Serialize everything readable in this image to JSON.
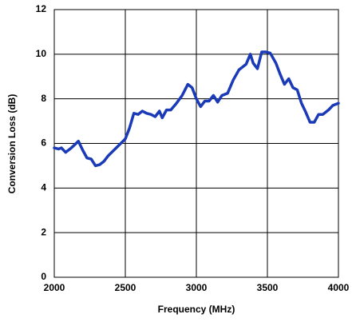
{
  "chart_data": {
    "type": "line",
    "x_label": "Frequency (MHz)",
    "y_label": "Conversion Loss (dB)",
    "x": [
      2000,
      2030,
      2050,
      2080,
      2120,
      2170,
      2200,
      2230,
      2260,
      2290,
      2320,
      2350,
      2380,
      2420,
      2460,
      2500,
      2530,
      2560,
      2590,
      2620,
      2650,
      2680,
      2710,
      2740,
      2760,
      2790,
      2820,
      2860,
      2900,
      2940,
      2970,
      3000,
      3030,
      3060,
      3090,
      3120,
      3150,
      3180,
      3220,
      3260,
      3300,
      3350,
      3380,
      3400,
      3430,
      3460,
      3490,
      3520,
      3560,
      3590,
      3620,
      3650,
      3680,
      3710,
      3740,
      3770,
      3800,
      3830,
      3860,
      3890,
      3930,
      3960,
      4000
    ],
    "series": [
      {
        "color": "#1a3ab8",
        "values": [
          5.8,
          5.75,
          5.8,
          5.6,
          5.8,
          6.1,
          5.7,
          5.35,
          5.3,
          5.0,
          5.05,
          5.2,
          5.45,
          5.7,
          5.95,
          6.2,
          6.7,
          7.35,
          7.3,
          7.45,
          7.35,
          7.3,
          7.2,
          7.45,
          7.15,
          7.5,
          7.5,
          7.8,
          8.15,
          8.65,
          8.5,
          8.0,
          7.65,
          7.9,
          7.9,
          8.15,
          7.85,
          8.15,
          8.25,
          8.85,
          9.3,
          9.55,
          10.0,
          9.6,
          9.35,
          10.1,
          10.1,
          10.05,
          9.6,
          9.1,
          8.65,
          8.9,
          8.5,
          8.4,
          7.8,
          7.4,
          6.95,
          6.95,
          7.3,
          7.3,
          7.5,
          7.7,
          7.8
        ]
      }
    ],
    "xlim": [
      2000,
      4000
    ],
    "xticks": [
      2000,
      2500,
      3000,
      3500,
      4000
    ],
    "ylim": [
      0,
      12
    ],
    "yticks": [
      0,
      2,
      4,
      6,
      8,
      10,
      12
    ],
    "grid": true
  }
}
